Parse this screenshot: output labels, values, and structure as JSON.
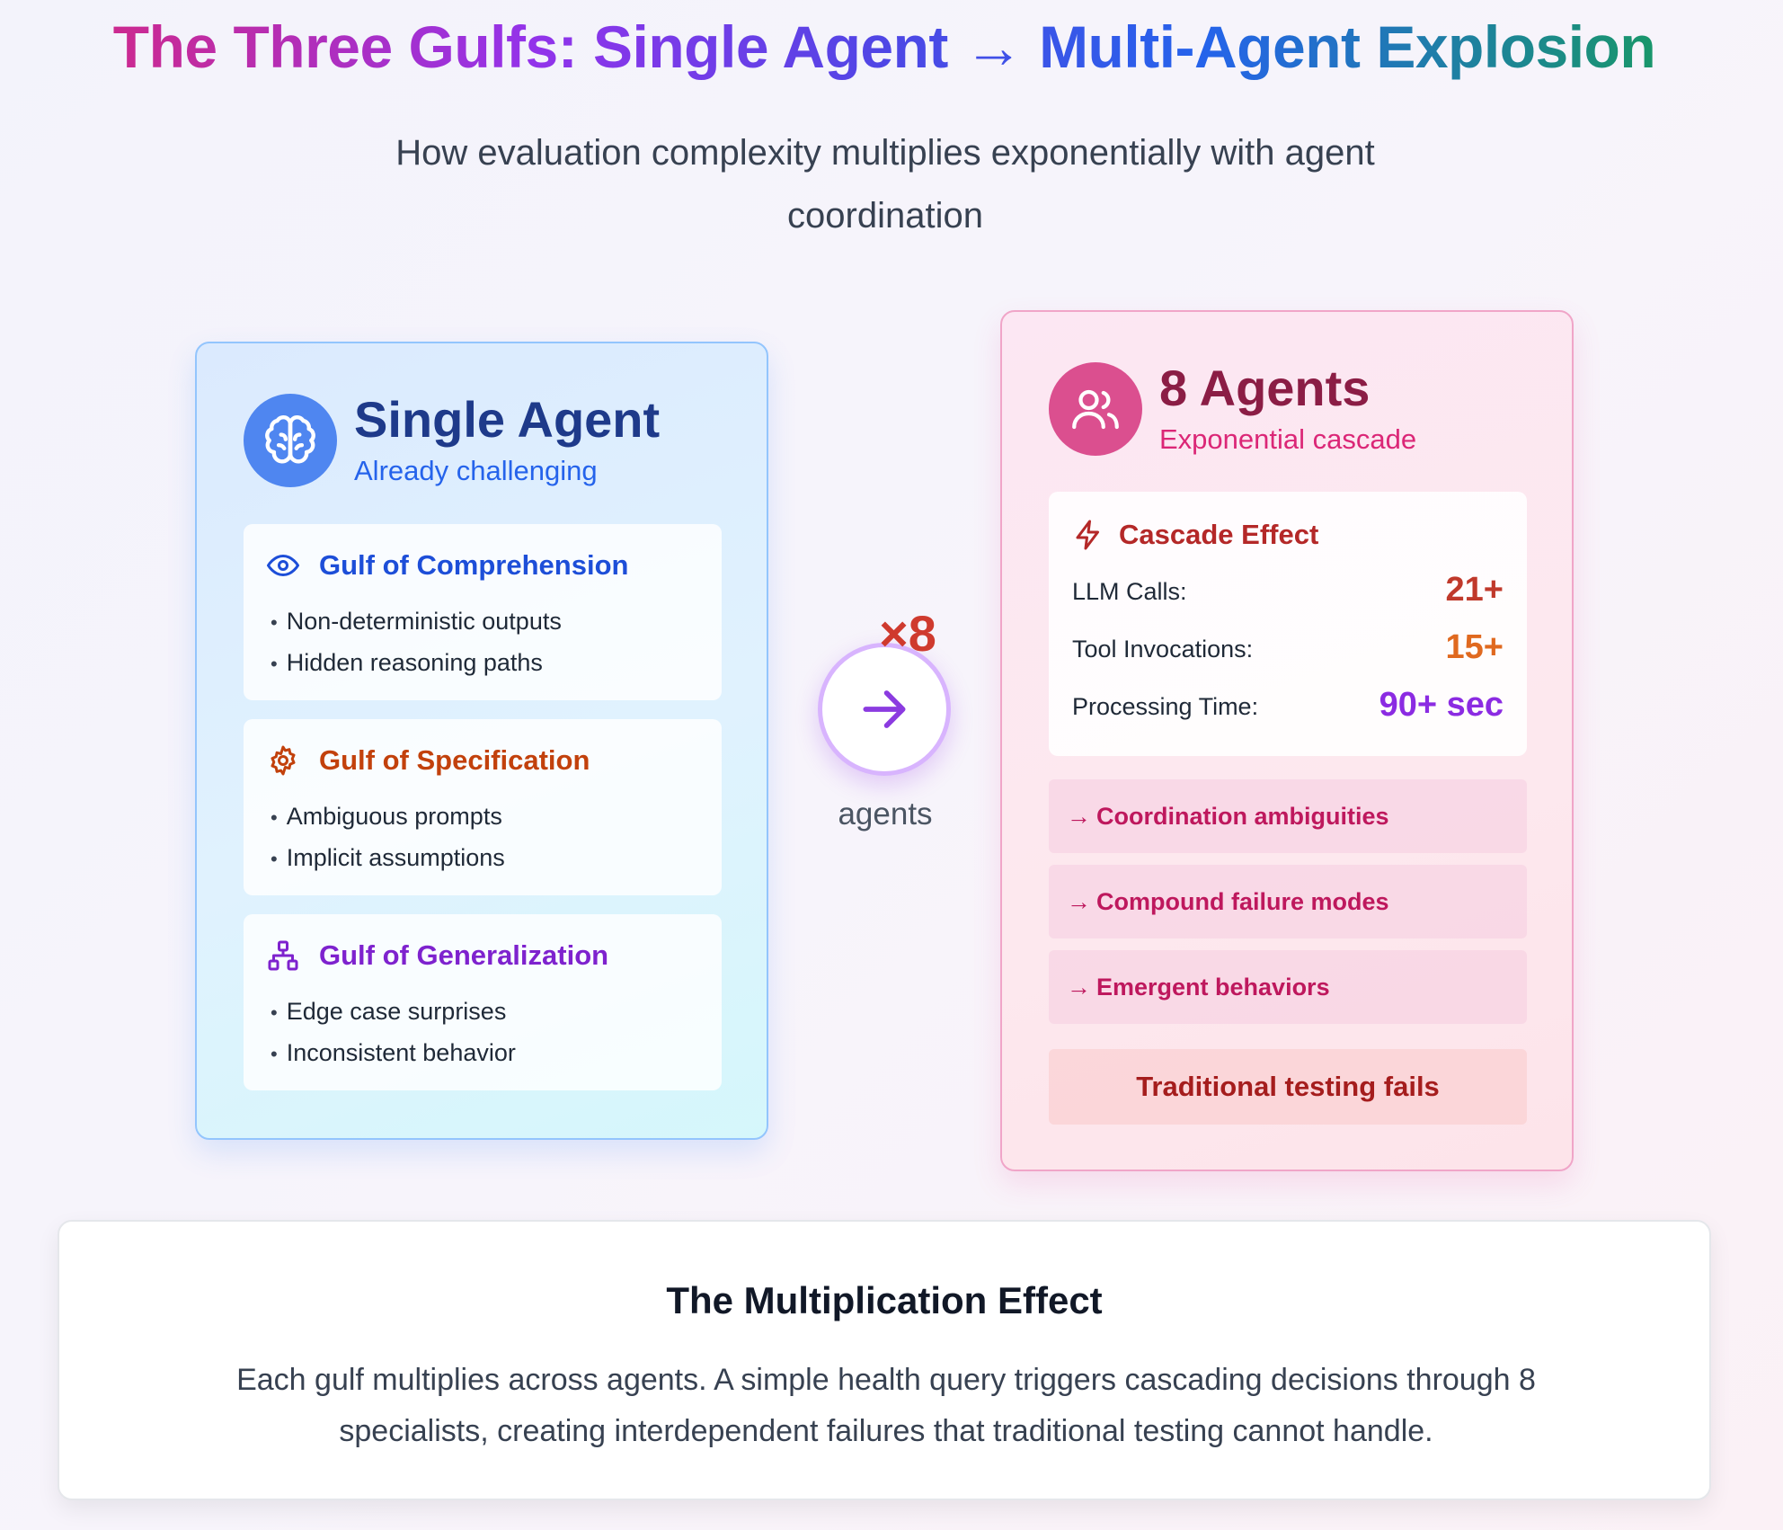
{
  "header": {
    "title": "The Three Gulfs: Single Agent → Multi-Agent Explosion",
    "subtitle": "How evaluation complexity multiplies exponentially with agent coordination"
  },
  "single_agent": {
    "icon": "brain-icon",
    "title": "Single Agent",
    "subtitle": "Already challenging",
    "gulfs": [
      {
        "icon": "eye-icon",
        "title": "Gulf of Comprehension",
        "color": "#1d4ed8",
        "points": [
          "Non-deterministic outputs",
          "Hidden reasoning paths"
        ]
      },
      {
        "icon": "gear-icon",
        "title": "Gulf of Specification",
        "color": "#c2410c",
        "points": [
          "Ambiguous prompts",
          "Implicit assumptions"
        ]
      },
      {
        "icon": "network-icon",
        "title": "Gulf of Generalization",
        "color": "#7e22ce",
        "points": [
          "Edge case surprises",
          "Inconsistent behavior"
        ]
      }
    ]
  },
  "connector": {
    "multiplier": "×8",
    "icon": "arrow-right-icon",
    "label": "agents"
  },
  "multi_agent": {
    "icon": "users-icon",
    "title": "8 Agents",
    "subtitle": "Exponential cascade",
    "cascade": {
      "icon": "lightning-icon",
      "title": "Cascade Effect",
      "metrics": [
        {
          "label": "LLM Calls:",
          "value": "21+",
          "color": "#c0392b"
        },
        {
          "label": "Tool Invocations:",
          "value": "15+",
          "color": "#e0691f"
        },
        {
          "label": "Processing Time:",
          "value": "90+ sec",
          "color": "#8b2be2"
        }
      ]
    },
    "effects": [
      {
        "arrow": "→",
        "text": "Coordination ambiguities"
      },
      {
        "arrow": "→",
        "text": "Compound failure modes"
      },
      {
        "arrow": "→",
        "text": "Emergent behaviors"
      }
    ],
    "conclusion": "Traditional testing fails"
  },
  "summary": {
    "title": "The Multiplication Effect",
    "text": "Each gulf multiplies across agents. A simple health query triggers cascading decisions through 8 specialists, creating interdependent failures that traditional testing cannot handle."
  }
}
